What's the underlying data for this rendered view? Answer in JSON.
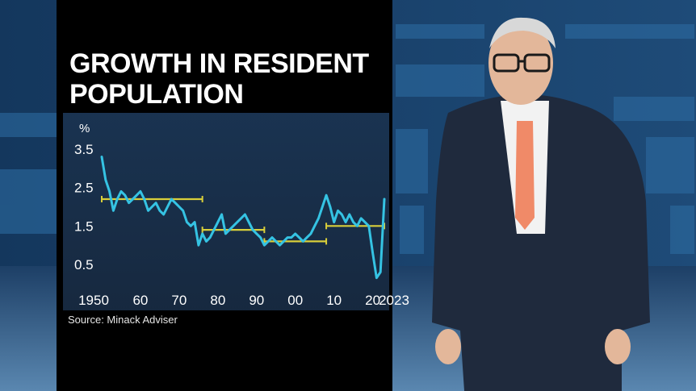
{
  "title_line1": "GROWTH IN RESIDENT",
  "title_line2": "POPULATION",
  "source": "Source: Minack Adviser",
  "colors": {
    "series_line": "#35c3e3",
    "average_line": "#d9cf3a",
    "panel_bg": "#000000",
    "text": "#ffffff"
  },
  "chart_data": {
    "type": "line",
    "title": "GROWTH IN RESIDENT POPULATION",
    "ylabel": "%",
    "xlim": [
      1950,
      2023
    ],
    "ylim": [
      0.2,
      3.5
    ],
    "yticks": [
      3.5,
      2.5,
      1.5,
      0.5
    ],
    "ytick_labels": [
      "3.5",
      "2.5",
      "1.5",
      "0.5"
    ],
    "xticks": [
      1950,
      1960,
      1970,
      1980,
      1990,
      2000,
      2010,
      2020,
      2023
    ],
    "xtick_labels": [
      "1950",
      "60",
      "70",
      "80",
      "90",
      "00",
      "10",
      "20",
      "2023"
    ],
    "grid": false,
    "series": [
      {
        "x": [
          1950,
          1951,
          1952,
          1953,
          1954,
          1955,
          1956,
          1957,
          1958,
          1959,
          1960,
          1961,
          1962,
          1963,
          1964,
          1965,
          1966,
          1967,
          1968,
          1969,
          1970,
          1971,
          1972,
          1973,
          1974,
          1975,
          1976,
          1977,
          1978,
          1979,
          1980,
          1981,
          1982,
          1983,
          1984,
          1985,
          1986,
          1987,
          1988,
          1989,
          1990,
          1991,
          1992,
          1993,
          1994,
          1995,
          1996,
          1997,
          1998,
          1999,
          2000,
          2001,
          2002,
          2003,
          2004,
          2005,
          2006,
          2007,
          2008,
          2009,
          2010,
          2011,
          2012,
          2013,
          2014,
          2015,
          2016,
          2017,
          2018,
          2019,
          2020,
          2021,
          2022,
          2023
        ],
        "y": [
          3.3,
          2.7,
          2.4,
          1.9,
          2.2,
          2.4,
          2.3,
          2.1,
          2.2,
          2.3,
          2.4,
          2.2,
          1.9,
          2.0,
          2.1,
          1.9,
          1.8,
          2.0,
          2.2,
          2.1,
          2.0,
          1.9,
          1.6,
          1.5,
          1.6,
          1.0,
          1.3,
          1.1,
          1.2,
          1.4,
          1.6,
          1.8,
          1.3,
          1.4,
          1.5,
          1.6,
          1.7,
          1.8,
          1.6,
          1.4,
          1.3,
          1.2,
          1.0,
          1.1,
          1.2,
          1.1,
          1.0,
          1.1,
          1.2,
          1.2,
          1.3,
          1.2,
          1.1,
          1.2,
          1.3,
          1.5,
          1.7,
          2.0,
          2.3,
          2.0,
          1.6,
          1.9,
          1.8,
          1.6,
          1.8,
          1.6,
          1.5,
          1.7,
          1.6,
          1.5,
          0.8,
          0.15,
          0.3,
          2.2
        ]
      }
    ],
    "averages": [
      {
        "x_start": 1950,
        "x_end": 1976,
        "value": 2.2
      },
      {
        "x_start": 1976,
        "x_end": 1992,
        "value": 1.4
      },
      {
        "x_start": 1992,
        "x_end": 2008,
        "value": 1.1
      },
      {
        "x_start": 2008,
        "x_end": 2023,
        "value": 1.5
      }
    ]
  }
}
